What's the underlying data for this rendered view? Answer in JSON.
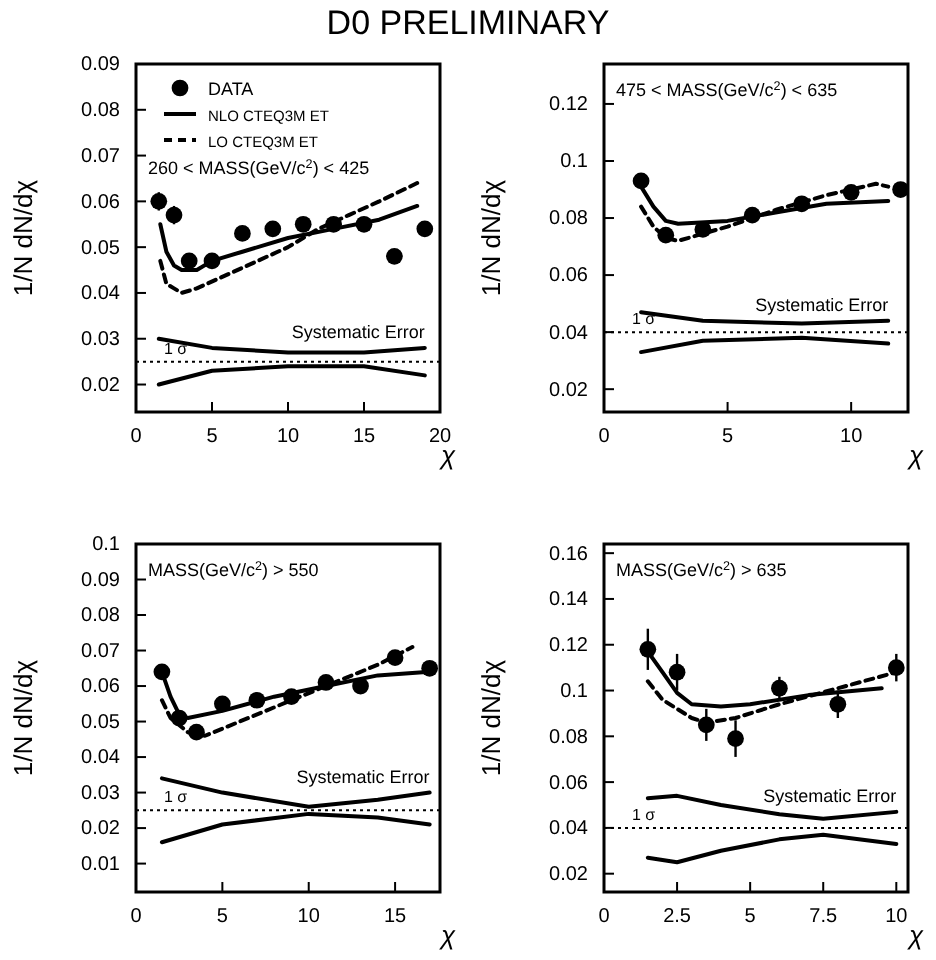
{
  "chart_data": [
    {
      "type": "scatter",
      "title": "D0 PRELIMINARY",
      "xlabel": "χ",
      "ylabel": "1/N dN/dχ",
      "xlim": [
        0,
        20
      ],
      "ylim": [
        0.014,
        0.09
      ],
      "xticks": [
        0,
        5,
        10,
        15,
        20
      ],
      "yticks": [
        0.02,
        0.03,
        0.04,
        0.05,
        0.06,
        0.07,
        0.08,
        0.09
      ],
      "legend": "top left",
      "grid": false,
      "annotations": [
        "260 < MASS(GeV/c$^{2}$) < 425",
        "1 σ"
      ],
      "ref_lines": [
        {
          "axis": "y",
          "value": 0.025,
          "color": "#000000",
          "line_style": "dotted"
        }
      ],
      "series": [
        {
          "name": "DATA",
          "color": "#000000",
          "marker": "circle",
          "x": [
            1.5,
            2.5,
            3.5,
            5,
            7,
            9,
            11,
            13,
            15,
            17,
            19
          ],
          "values": [
            0.06,
            0.057,
            0.047,
            0.047,
            0.053,
            0.054,
            0.055,
            0.055,
            0.055,
            0.048,
            0.054
          ],
          "errors": [
            0.002,
            0.002,
            0.0015,
            0.001,
            0.001,
            0.001,
            0.001,
            0.001,
            0.001,
            0.001,
            0.001
          ]
        },
        {
          "type": "line",
          "name": "NLO CTEQ3M ET",
          "color": "#000000",
          "line_style": "solid",
          "x": [
            1.6,
            2,
            2.5,
            3,
            4,
            5,
            7,
            10,
            13,
            16,
            18.5
          ],
          "values": [
            0.055,
            0.049,
            0.046,
            0.045,
            0.045,
            0.047,
            0.049,
            0.052,
            0.054,
            0.056,
            0.059
          ]
        },
        {
          "type": "line",
          "name": "LO CTEQ3M ET",
          "color": "#000000",
          "line_style": "dashed",
          "x": [
            1.6,
            2,
            2.5,
            3,
            4,
            6,
            8,
            10,
            12,
            14,
            16,
            18.5
          ],
          "values": [
            0.047,
            0.042,
            0.041,
            0.04,
            0.041,
            0.044,
            0.047,
            0.05,
            0.054,
            0.057,
            0.06,
            0.064
          ]
        },
        {
          "type": "line",
          "name": "Systematic Error",
          "color": "#000000",
          "line_style": "solid",
          "x": [
            1.5,
            5,
            10,
            15,
            19
          ],
          "values": [
            0.03,
            0.028,
            0.027,
            0.027,
            0.028
          ]
        },
        {
          "type": "line",
          "color": "#000000",
          "line_style": "solid",
          "x": [
            1.5,
            5,
            10,
            15,
            19
          ],
          "values": [
            0.02,
            0.023,
            0.024,
            0.024,
            0.022
          ]
        }
      ]
    },
    {
      "type": "scatter",
      "xlabel": "χ",
      "ylabel": "1/N dN/dχ",
      "xlim": [
        0,
        12.3
      ],
      "ylim": [
        0.012,
        0.134
      ],
      "xticks": [
        0,
        5,
        10
      ],
      "yticks": [
        0.02,
        0.04,
        0.06,
        0.08,
        0.1,
        0.12
      ],
      "grid": false,
      "annotations": [
        "475 < MASS(GeV/c$^{2}$) < 635",
        "1 σ"
      ],
      "ref_lines": [
        {
          "axis": "y",
          "value": 0.04,
          "color": "#000000",
          "line_style": "dotted"
        }
      ],
      "series": [
        {
          "color": "#000000",
          "marker": "circle",
          "x": [
            1.5,
            2.5,
            4,
            6,
            8,
            10,
            12
          ],
          "values": [
            0.093,
            0.074,
            0.076,
            0.081,
            0.085,
            0.089,
            0.09
          ]
        },
        {
          "type": "line",
          "color": "#000000",
          "line_style": "solid",
          "x": [
            1.5,
            2,
            2.5,
            3,
            5,
            7,
            9,
            11.5
          ],
          "values": [
            0.091,
            0.084,
            0.079,
            0.078,
            0.079,
            0.082,
            0.085,
            0.086
          ]
        },
        {
          "type": "line",
          "color": "#000000",
          "line_style": "dashed",
          "x": [
            1.5,
            2,
            2.5,
            3,
            5,
            7,
            9,
            11,
            11.5
          ],
          "values": [
            0.084,
            0.077,
            0.073,
            0.072,
            0.077,
            0.083,
            0.088,
            0.092,
            0.091
          ]
        },
        {
          "type": "line",
          "name": "Systematic Error",
          "color": "#000000",
          "line_style": "solid",
          "x": [
            1.5,
            4,
            8,
            11.5
          ],
          "values": [
            0.047,
            0.044,
            0.043,
            0.044
          ]
        },
        {
          "type": "line",
          "color": "#000000",
          "line_style": "solid",
          "x": [
            1.5,
            4,
            8,
            11.5
          ],
          "values": [
            0.033,
            0.037,
            0.038,
            0.036
          ]
        }
      ]
    },
    {
      "type": "scatter",
      "xlabel": "χ",
      "ylabel": "1/N dN/dχ",
      "xlim": [
        0,
        17.6
      ],
      "ylim": [
        0.002,
        0.1
      ],
      "xticks": [
        0,
        5,
        10,
        15
      ],
      "yticks": [
        0.01,
        0.02,
        0.03,
        0.04,
        0.05,
        0.06,
        0.07,
        0.08,
        0.09,
        0.1
      ],
      "grid": false,
      "annotations": [
        "MASS(GeV/c$^{2}$) > 550",
        "1 σ"
      ],
      "ref_lines": [
        {
          "axis": "y",
          "value": 0.025,
          "color": "#000000",
          "line_style": "dotted"
        }
      ],
      "series": [
        {
          "color": "#000000",
          "marker": "circle",
          "x": [
            1.5,
            2.5,
            3.5,
            5,
            7,
            9,
            11,
            13,
            15,
            17
          ],
          "values": [
            0.064,
            0.051,
            0.047,
            0.055,
            0.056,
            0.057,
            0.061,
            0.06,
            0.068,
            0.065
          ],
          "errors": [
            0.002,
            0.002,
            0.002,
            0.001,
            0.001,
            0.001,
            0.001,
            0.001,
            0.001,
            0.001
          ]
        },
        {
          "type": "line",
          "color": "#000000",
          "line_style": "solid",
          "x": [
            1.5,
            2,
            2.5,
            3,
            5,
            8,
            11,
            14,
            17
          ],
          "values": [
            0.064,
            0.057,
            0.052,
            0.051,
            0.053,
            0.057,
            0.06,
            0.063,
            0.064
          ]
        },
        {
          "type": "line",
          "color": "#000000",
          "line_style": "dashed",
          "x": [
            1.5,
            2,
            3,
            4,
            6,
            9,
            12,
            14,
            16
          ],
          "values": [
            0.056,
            0.051,
            0.047,
            0.046,
            0.05,
            0.056,
            0.062,
            0.066,
            0.071
          ]
        },
        {
          "type": "line",
          "name": "Systematic Error",
          "color": "#000000",
          "line_style": "solid",
          "x": [
            1.5,
            5,
            10,
            14,
            17
          ],
          "values": [
            0.034,
            0.03,
            0.026,
            0.028,
            0.03
          ]
        },
        {
          "type": "line",
          "color": "#000000",
          "line_style": "solid",
          "x": [
            1.5,
            5,
            10,
            14,
            17
          ],
          "values": [
            0.016,
            0.021,
            0.024,
            0.023,
            0.021
          ]
        }
      ]
    },
    {
      "type": "scatter",
      "xlabel": "χ",
      "ylabel": "1/N dN/dχ",
      "xlim": [
        0,
        10.4
      ],
      "ylim": [
        0.012,
        0.164
      ],
      "xticks": [
        0,
        2.5,
        5,
        7.5,
        10
      ],
      "yticks": [
        0.02,
        0.04,
        0.06,
        0.08,
        0.1,
        0.12,
        0.14,
        0.16
      ],
      "grid": false,
      "annotations": [
        "MASS(GeV/c$^{2}$) > 635",
        "1 σ"
      ],
      "ref_lines": [
        {
          "axis": "y",
          "value": 0.04,
          "color": "#000000",
          "line_style": "dotted"
        }
      ],
      "series": [
        {
          "color": "#000000",
          "marker": "circle",
          "x": [
            1.5,
            2.5,
            3.5,
            4.5,
            6,
            8,
            10
          ],
          "values": [
            0.118,
            0.108,
            0.085,
            0.079,
            0.101,
            0.094,
            0.11
          ],
          "errors": [
            0.009,
            0.008,
            0.007,
            0.008,
            0.005,
            0.006,
            0.006
          ]
        },
        {
          "type": "line",
          "color": "#000000",
          "line_style": "solid",
          "x": [
            1.5,
            2,
            2.5,
            3,
            4,
            5,
            7,
            9.5
          ],
          "values": [
            0.117,
            0.108,
            0.099,
            0.094,
            0.093,
            0.094,
            0.098,
            0.101
          ]
        },
        {
          "type": "line",
          "color": "#000000",
          "line_style": "dashed",
          "x": [
            1.5,
            2,
            3,
            3.5,
            4.5,
            6,
            8,
            10
          ],
          "values": [
            0.104,
            0.096,
            0.088,
            0.086,
            0.088,
            0.094,
            0.101,
            0.108
          ]
        },
        {
          "type": "line",
          "name": "Systematic Error",
          "color": "#000000",
          "line_style": "solid",
          "x": [
            1.5,
            2.5,
            4,
            6,
            7.5,
            10
          ],
          "values": [
            0.053,
            0.054,
            0.05,
            0.046,
            0.044,
            0.047
          ]
        },
        {
          "type": "line",
          "color": "#000000",
          "line_style": "solid",
          "x": [
            1.5,
            2.5,
            4,
            6,
            7.5,
            10
          ],
          "values": [
            0.027,
            0.025,
            0.03,
            0.035,
            0.037,
            0.033
          ]
        }
      ]
    }
  ]
}
